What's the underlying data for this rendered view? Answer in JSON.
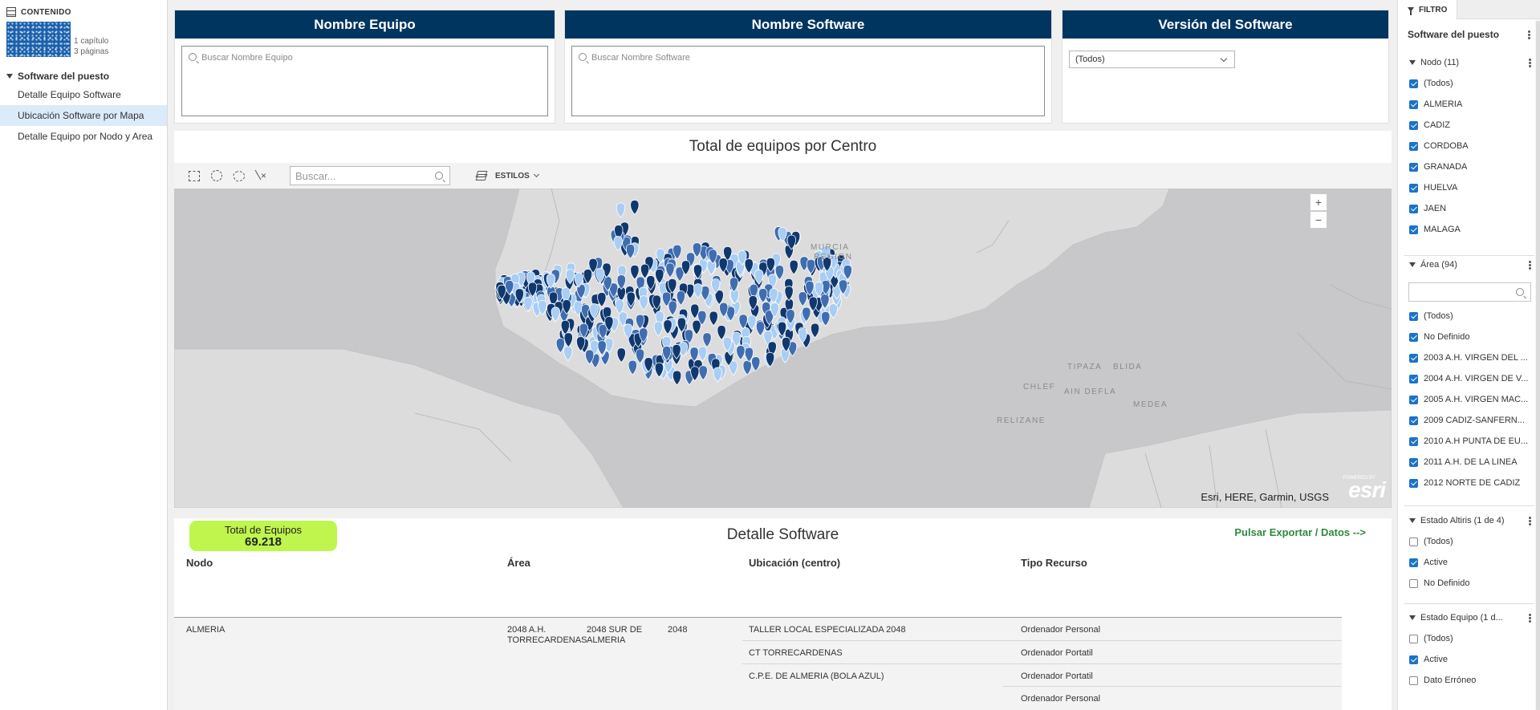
{
  "sidebar": {
    "header": "CONTENIDO",
    "thumb_meta": [
      "1 capítulo",
      "3 páginas"
    ],
    "chapter": "Software del puesto",
    "pages": [
      {
        "label": "Detalle Equipo Software",
        "active": false
      },
      {
        "label": "Ubicación Software por Mapa",
        "active": true
      },
      {
        "label": "Detalle Equipo por Nodo y Area",
        "active": false
      }
    ]
  },
  "filters": {
    "equipo": {
      "title": "Nombre Equipo",
      "placeholder": "Buscar Nombre Equipo"
    },
    "software": {
      "title": "Nombre Software",
      "placeholder": "Buscar Nombre Software"
    },
    "version": {
      "title": "Versión del Software",
      "selected": "(Todos)"
    }
  },
  "map": {
    "title": "Total de equipos por Centro",
    "search_placeholder": "Buscar...",
    "styles_label": "ESTILOS",
    "zoom_in": "+",
    "zoom_out": "−",
    "attribution": "Esri, HERE, Garmin, USGS",
    "logo": "esri",
    "logo_small": "POWERED BY",
    "labels": {
      "murcia": "MURCIA",
      "region": "REGION",
      "tipaza": "TIPAZA",
      "blida": "BLIDA",
      "chlef": "CHLEF",
      "ain_defla": "AIN DEFLA",
      "medea": "MEDEA",
      "relizane": "RELIZANE"
    },
    "colors": {
      "water": "#c8c8ca",
      "land": "#dcdcdc",
      "pin_dark": "#10386f",
      "pin_mid": "#3f6db0",
      "pin_light": "#a9cdf3"
    }
  },
  "detail": {
    "total_label": "Total de Equipos",
    "total_value": "69.218",
    "title": "Detalle Software",
    "export_label": "Pulsar Exportar / Datos -->",
    "columns": [
      "Nodo",
      "Área",
      "Ubicación (centro)",
      "Tipo Recurso"
    ],
    "row": {
      "nodo": "ALMERIA",
      "area_1": "2048 A.H. TORRECARDENAS",
      "area_2": "2048 SUR DE ALMERIA",
      "area_3": "2048",
      "ubicaciones": [
        "TALLER LOCAL ESPECIALIZADA 2048",
        "CT TORRECARDENAS",
        "C.P.E. DE ALMERIA (BOLA AZUL)"
      ],
      "tipos": [
        "Ordenador Personal",
        "Ordenador Portatil",
        "Ordenador Portatil",
        "Ordenador Personal"
      ]
    }
  },
  "filter_panel": {
    "tab": "FILTRO",
    "title": "Software del puesto",
    "nodo": {
      "header": "Nodo (11)",
      "items": [
        {
          "label": "(Todos)",
          "checked": true
        },
        {
          "label": "ALMERIA",
          "checked": true
        },
        {
          "label": "CADIZ",
          "checked": true
        },
        {
          "label": "CORDOBA",
          "checked": true
        },
        {
          "label": "GRANADA",
          "checked": true
        },
        {
          "label": "HUELVA",
          "checked": true
        },
        {
          "label": "JAEN",
          "checked": true
        },
        {
          "label": "MALAGA",
          "checked": true
        }
      ]
    },
    "area": {
      "header": "Área (94)",
      "items": [
        {
          "label": "(Todos)",
          "checked": true
        },
        {
          "label": "No Definido",
          "checked": true
        },
        {
          "label": "2003 A.H. VIRGEN DEL ...",
          "checked": true
        },
        {
          "label": "2004 A.H. VIRGEN DE V...",
          "checked": true
        },
        {
          "label": "2005 A.H. VIRGEN MAC...",
          "checked": true
        },
        {
          "label": "2009 CADIZ-SANFERN...",
          "checked": true
        },
        {
          "label": "2010 A.H PUNTA DE EU...",
          "checked": true
        },
        {
          "label": "2011 A.H. DE LA LINEA",
          "checked": true
        },
        {
          "label": "2012 NORTE DE CADIZ",
          "checked": true
        }
      ]
    },
    "estado_altiris": {
      "header": "Estado Altiris (1 de 4)",
      "items": [
        {
          "label": "(Todos)",
          "checked": false
        },
        {
          "label": "Active",
          "checked": true
        },
        {
          "label": "No Definido",
          "checked": false
        }
      ]
    },
    "estado_equipo": {
      "header": "Estado Equipo (1 d...",
      "items": [
        {
          "label": "(Todos)",
          "checked": false
        },
        {
          "label": "Active",
          "checked": true
        },
        {
          "label": "Dato Erróneo",
          "checked": false
        }
      ]
    }
  }
}
